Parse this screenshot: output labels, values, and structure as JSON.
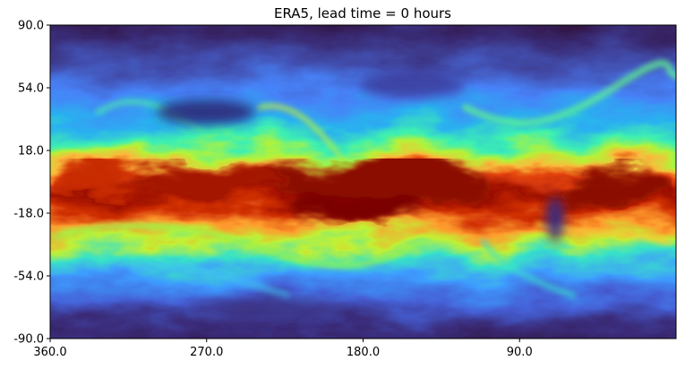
{
  "chart_data": {
    "type": "heatmap",
    "title": "ERA5, lead time = 0 hours",
    "xlabel": "",
    "ylabel": "",
    "x_ticks": [
      "360.0",
      "270.0",
      "180.0",
      "90.0"
    ],
    "x_tick_values": [
      360,
      270,
      180,
      90
    ],
    "xlim": [
      360,
      0
    ],
    "y_ticks": [
      "90.0",
      "54.0",
      "18.0",
      "-18.0",
      "-54.0",
      "-90.0"
    ],
    "y_tick_values": [
      90,
      54,
      18,
      -18,
      -54,
      -90
    ],
    "ylim": [
      -90,
      90
    ],
    "colormap": "turbo",
    "grid": false,
    "legend": "none"
  }
}
